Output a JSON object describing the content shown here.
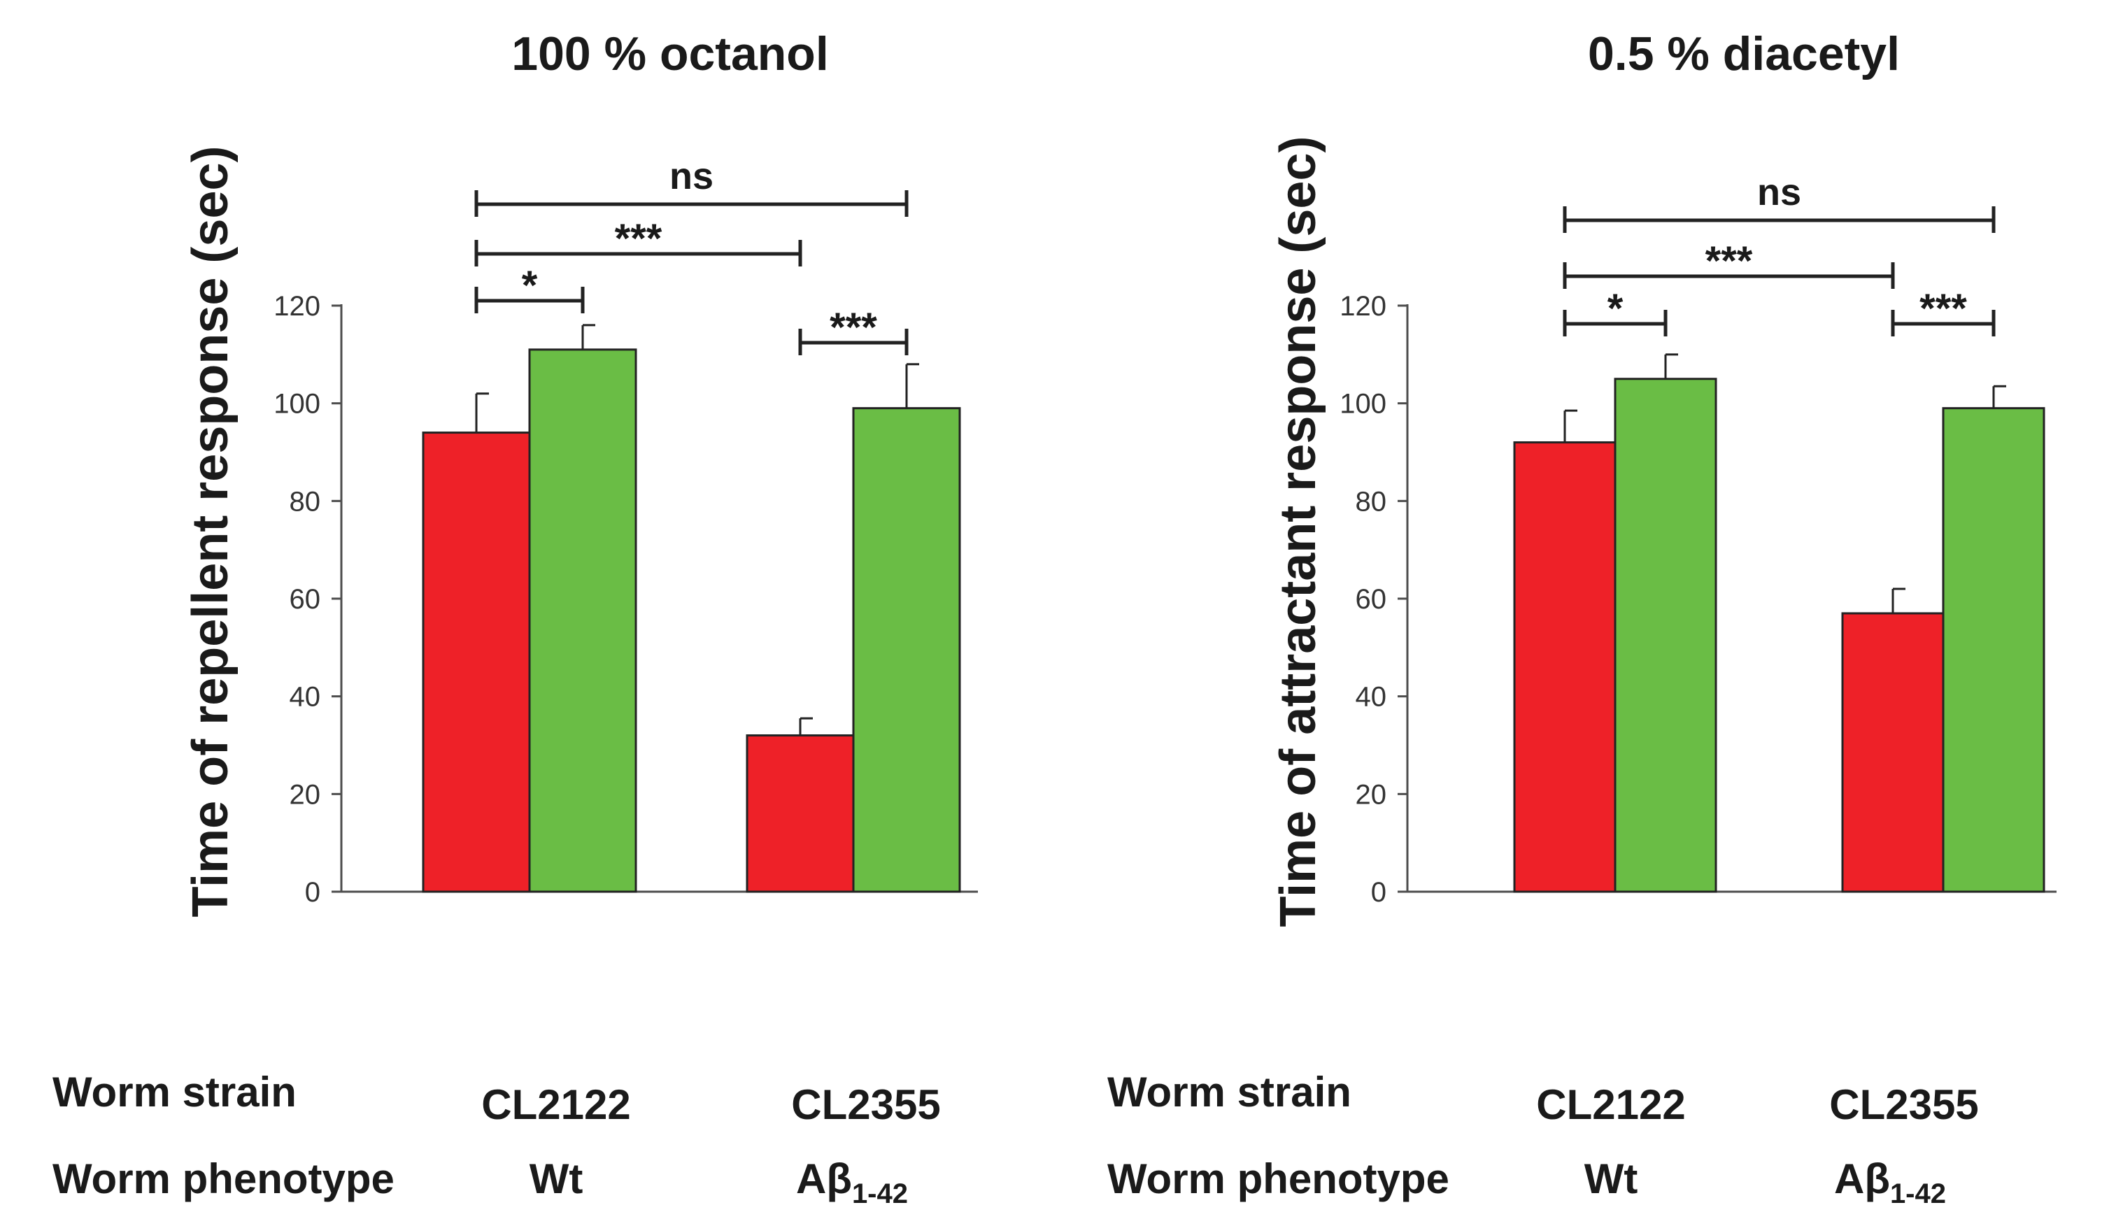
{
  "colors": {
    "red": "#ee2128",
    "green": "#6abd45",
    "axis": "#4d4d4d",
    "text": "#1a1a1a"
  },
  "row_labels": {
    "strain": "Worm  strain",
    "phenotype": "Worm  phenotype"
  },
  "chart_data": [
    {
      "type": "bar",
      "title": "100 % octanol",
      "ylabel": "Time of repellent response (sec)",
      "ylim": [
        0,
        120
      ],
      "yticks": [
        0,
        20,
        40,
        60,
        80,
        100,
        120
      ],
      "categories": [
        "CL2122",
        "CL2355"
      ],
      "phenotypes": {
        "CL2122": "Wt",
        "CL2355": {
          "base": "Aβ",
          "sub": "1-42"
        }
      },
      "series": [
        {
          "color": "red",
          "values": [
            94,
            32
          ],
          "errors": [
            8,
            3.5
          ]
        },
        {
          "color": "green",
          "values": [
            111,
            99
          ],
          "errors": [
            5,
            9
          ]
        }
      ],
      "significance": [
        {
          "label": "*",
          "from": [
            0,
            0
          ],
          "to": [
            0,
            1
          ]
        },
        {
          "label": "***",
          "from": [
            0,
            0
          ],
          "to": [
            1,
            0
          ]
        },
        {
          "label": "ns",
          "from": [
            0,
            0
          ],
          "to": [
            1,
            1
          ]
        },
        {
          "label": "***",
          "from": [
            1,
            0
          ],
          "to": [
            1,
            1
          ]
        }
      ]
    },
    {
      "type": "bar",
      "title": "0.5 % diacetyl",
      "ylabel": "Time of attractant response (sec)",
      "ylim": [
        0,
        120
      ],
      "yticks": [
        0,
        20,
        40,
        60,
        80,
        100,
        120
      ],
      "categories": [
        "CL2122",
        "CL2355"
      ],
      "phenotypes": {
        "CL2122": "Wt",
        "CL2355": {
          "base": "Aβ",
          "sub": "1-42"
        }
      },
      "series": [
        {
          "color": "red",
          "values": [
            92,
            57
          ],
          "errors": [
            6.5,
            5
          ]
        },
        {
          "color": "green",
          "values": [
            105,
            99
          ],
          "errors": [
            5,
            4.5
          ]
        }
      ],
      "significance": [
        {
          "label": "*",
          "from": [
            0,
            0
          ],
          "to": [
            0,
            1
          ]
        },
        {
          "label": "***",
          "from": [
            0,
            0
          ],
          "to": [
            1,
            0
          ]
        },
        {
          "label": "ns",
          "from": [
            0,
            0
          ],
          "to": [
            1,
            1
          ]
        },
        {
          "label": "***",
          "from": [
            1,
            0
          ],
          "to": [
            1,
            1
          ]
        }
      ]
    }
  ]
}
